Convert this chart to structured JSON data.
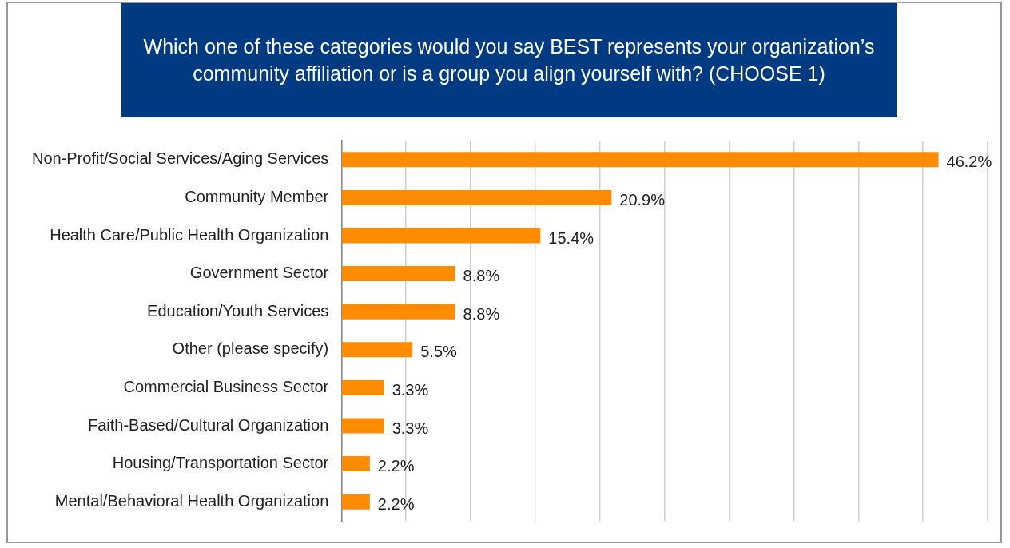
{
  "chart_data": {
    "type": "bar",
    "orientation": "horizontal",
    "title": "Which one of these categories would you say BEST represents your organization’s community affiliation or is a group you align yourself with? (CHOOSE 1)",
    "categories": [
      "Non-Profit/Social Services/Aging Services",
      "Community Member",
      "Health Care/Public Health Organization",
      "Government Sector",
      "Education/Youth Services",
      "Other (please specify)",
      "Commercial Business Sector",
      "Faith-Based/Cultural Organization",
      "Housing/Transportation Sector",
      "Mental/Behavioral Health Organization"
    ],
    "values": [
      46.2,
      20.9,
      15.4,
      8.8,
      8.8,
      5.5,
      3.3,
      3.3,
      2.2,
      2.2
    ],
    "value_labels": [
      "46.2%",
      "20.9%",
      "15.4%",
      "8.8%",
      "8.8%",
      "5.5%",
      "3.3%",
      "3.3%",
      "2.2%",
      "2.2%"
    ],
    "color": "#ff8c00",
    "xlim": [
      0,
      50
    ],
    "xticks": [
      {
        "value": 0,
        "label": null
      },
      {
        "value": 5,
        "label": null
      },
      {
        "value": 10,
        "label": null
      },
      {
        "value": 15,
        "label": null
      },
      {
        "value": 20,
        "label": null
      },
      {
        "value": 25,
        "label": null
      },
      {
        "value": 30,
        "label": null
      },
      {
        "value": 35,
        "label": null
      },
      {
        "value": 40,
        "label": null
      },
      {
        "value": 45,
        "label": null
      },
      {
        "value": 50,
        "label": null
      }
    ],
    "tick_labels": "y",
    "grid": "x",
    "legend": false
  }
}
